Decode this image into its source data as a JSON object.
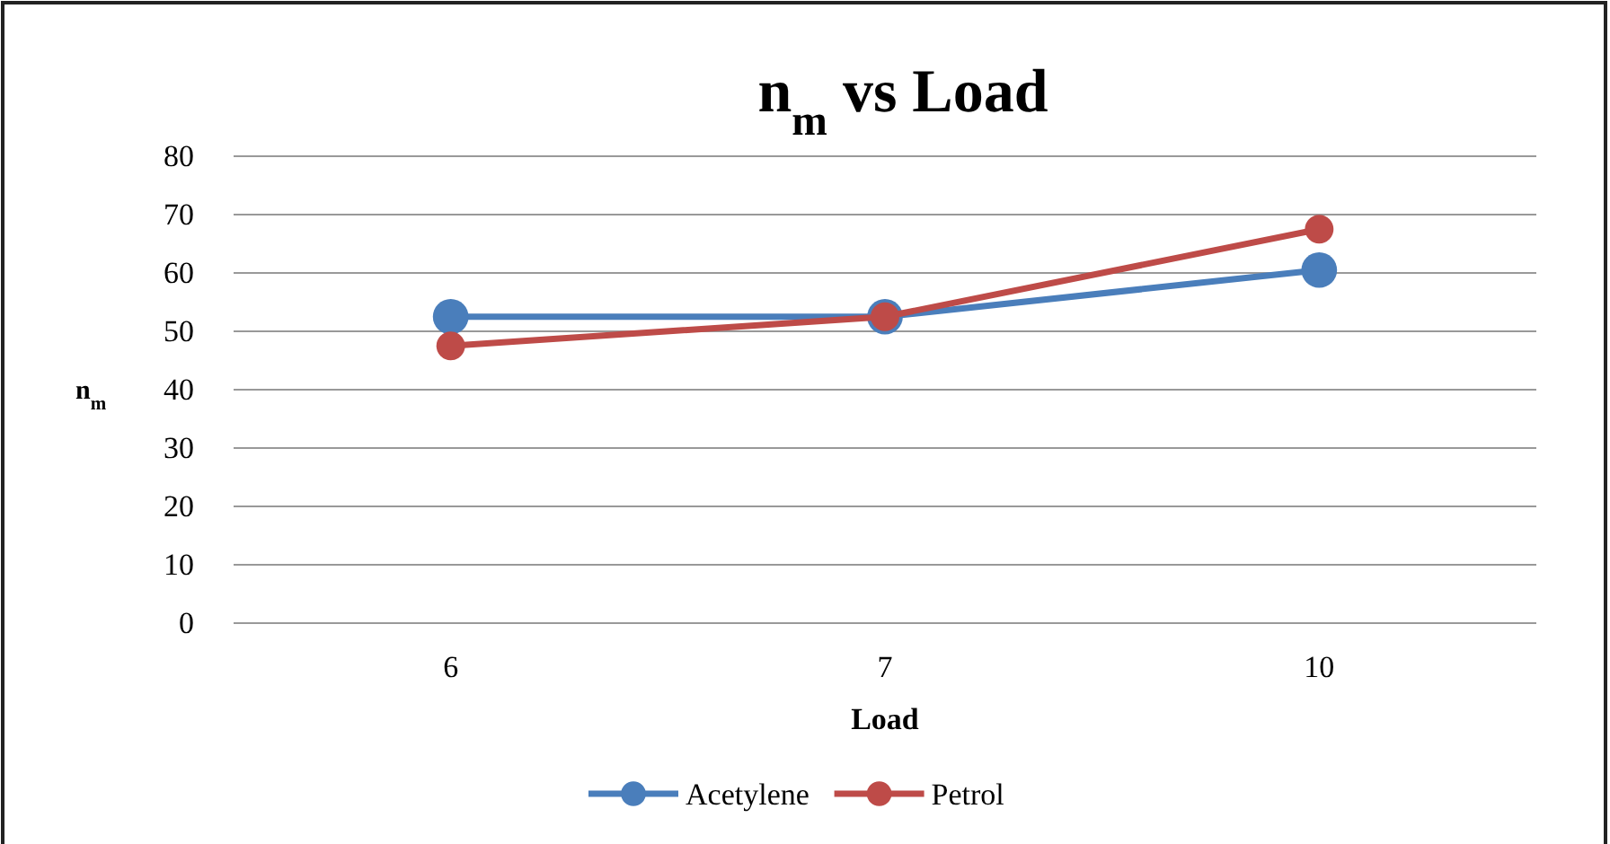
{
  "chart_data": {
    "type": "line",
    "title": "n$_{m}$ vs Load",
    "xlabel": "Load",
    "ylabel": "n$_{m}$",
    "categories": [
      "6",
      "7",
      "10"
    ],
    "series": [
      {
        "name": "Acetylene",
        "color": "#4a7ebb",
        "values": [
          52.5,
          52.5,
          60.5
        ]
      },
      {
        "name": "Petrol",
        "color": "#be4b48",
        "values": [
          47.5,
          52.5,
          67.5
        ]
      }
    ],
    "ylim": [
      0,
      80
    ],
    "yticks": [
      0,
      10,
      20,
      30,
      40,
      50,
      60,
      70,
      80
    ],
    "grid": "y",
    "legend": "bottom",
    "marker": "circle",
    "line_style": "solid"
  }
}
